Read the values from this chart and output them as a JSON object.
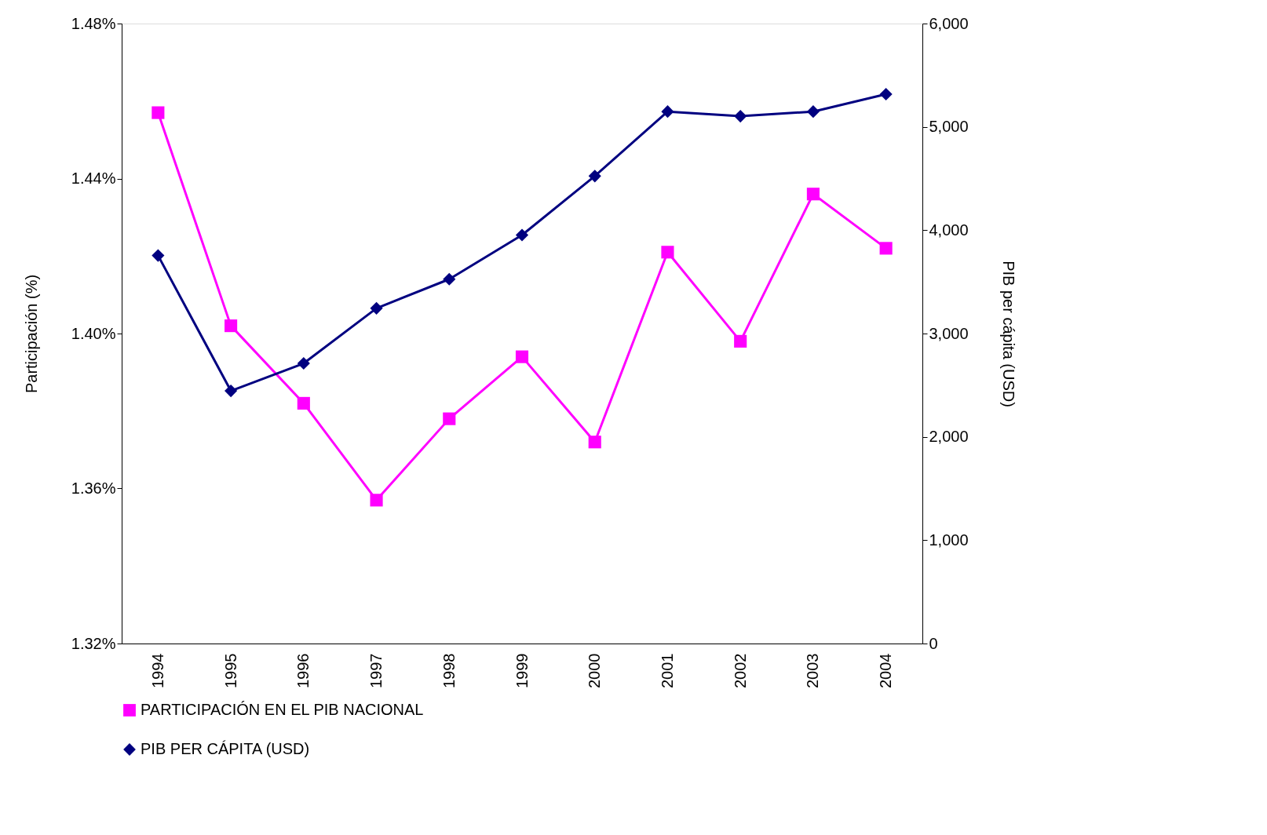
{
  "chart_data": {
    "type": "line",
    "categories": [
      "1994",
      "1995",
      "1996",
      "1997",
      "1998",
      "1999",
      "2000",
      "2001",
      "2002",
      "2003",
      "2004"
    ],
    "ylabel": "Participación (%)",
    "y2label": "PIB per cápita (USD)",
    "ylim": [
      1.32,
      1.48
    ],
    "yticks": [
      {
        "value": 1.32,
        "label": "1.32%"
      },
      {
        "value": 1.36,
        "label": "1.36%"
      },
      {
        "value": 1.4,
        "label": "1.40%"
      },
      {
        "value": 1.44,
        "label": "1.44%"
      },
      {
        "value": 1.48,
        "label": "1.48%"
      }
    ],
    "y2lim": [
      0,
      6000
    ],
    "y2ticks": [
      0,
      {
        "value": 1000,
        "label": "1,000"
      },
      {
        "value": 2000,
        "label": "2,000"
      },
      {
        "value": 3000,
        "label": "3,000"
      },
      {
        "value": 4000,
        "label": "4,000"
      },
      {
        "value": 5000,
        "label": "5,000"
      },
      {
        "value": 6000,
        "label": "6,000"
      }
    ],
    "legend": "bottom",
    "grid": false,
    "series": [
      {
        "name": "PARTICIPACIÓN EN EL PIB NACIONAL",
        "color": "#ff00ff",
        "marker": "square",
        "values": [
          1.457,
          1.402,
          1.382,
          1.357,
          1.378,
          1.394,
          1.372,
          1.421,
          1.398,
          1.436,
          1.422
        ]
      },
      {
        "name": "PIB PER CÁPITA (USD)",
        "color": "#000080",
        "marker": "diamond",
        "axis": "y2",
        "values": [
          3755,
          2445,
          2711,
          3244,
          3526,
          3953,
          4524,
          5148,
          5103,
          5148,
          5316
        ]
      }
    ]
  }
}
